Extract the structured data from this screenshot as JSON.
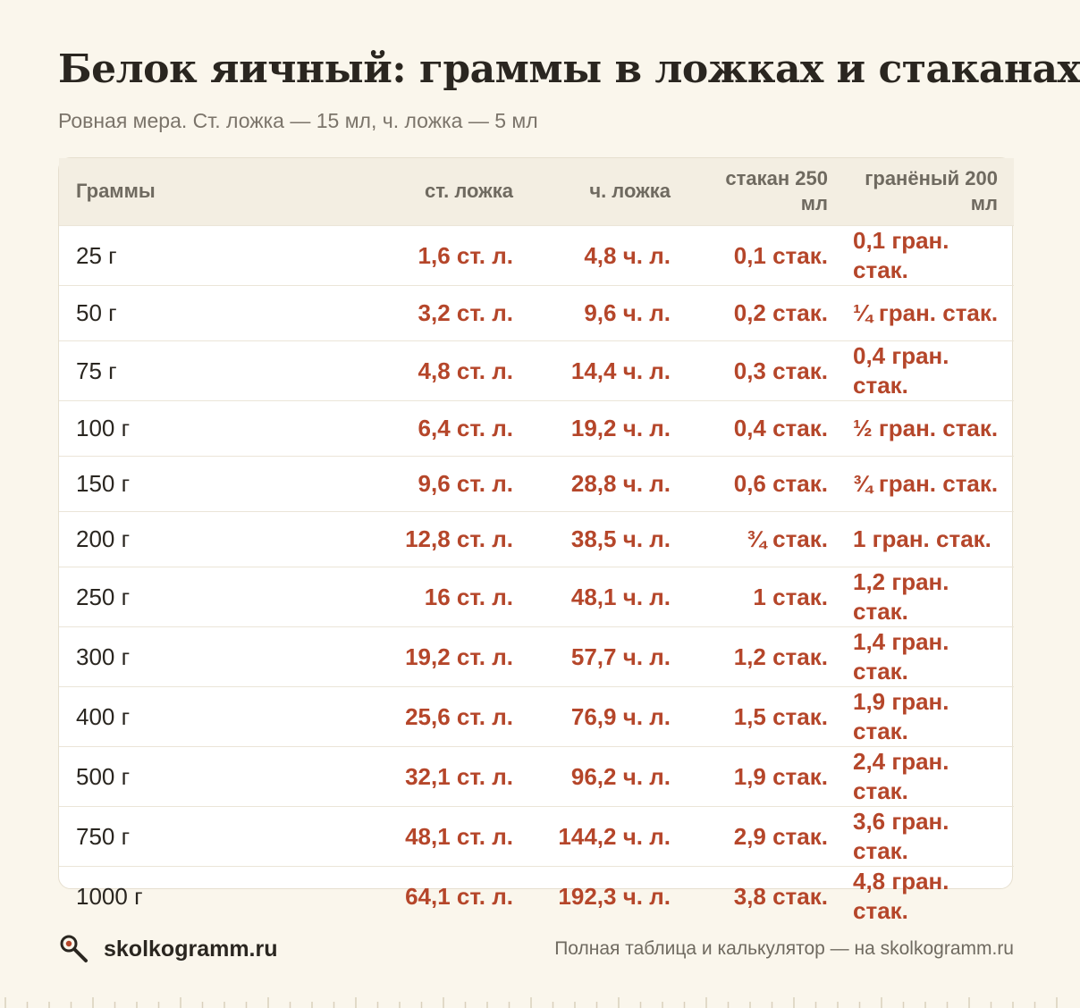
{
  "title": "Белок яичный: граммы в ложках и стаканах",
  "subtitle": "Ровная мера. Ст. ложка — 15 мл, ч. ложка — 5 мл",
  "table": {
    "headers": [
      "Граммы",
      "ст. ложка",
      "ч. ложка",
      "стакан 250 мл",
      "гранёный 200 мл"
    ],
    "rows": [
      [
        "25 г",
        "1,6 ст. л.",
        "4,8 ч. л.",
        "0,1 стак.",
        "0,1 гран. стак."
      ],
      [
        "50 г",
        "3,2 ст. л.",
        "9,6 ч. л.",
        "0,2 стак.",
        "¼ гран. стак."
      ],
      [
        "75 г",
        "4,8 ст. л.",
        "14,4 ч. л.",
        "0,3 стак.",
        "0,4 гран. стак."
      ],
      [
        "100 г",
        "6,4 ст. л.",
        "19,2 ч. л.",
        "0,4 стак.",
        "½ гран. стак."
      ],
      [
        "150 г",
        "9,6 ст. л.",
        "28,8 ч. л.",
        "0,6 стак.",
        "¾ гран. стак."
      ],
      [
        "200 г",
        "12,8 ст. л.",
        "38,5 ч. л.",
        "¾ стак.",
        "1 гран. стак."
      ],
      [
        "250 г",
        "16 ст. л.",
        "48,1 ч. л.",
        "1 стак.",
        "1,2 гран. стак."
      ],
      [
        "300 г",
        "19,2 ст. л.",
        "57,7 ч. л.",
        "1,2 стак.",
        "1,4 гран. стак."
      ],
      [
        "400 г",
        "25,6 ст. л.",
        "76,9 ч. л.",
        "1,5 стак.",
        "1,9 гран. стак."
      ],
      [
        "500 г",
        "32,1 ст. л.",
        "96,2 ч. л.",
        "1,9 стак.",
        "2,4 гран. стак."
      ],
      [
        "750 г",
        "48,1 ст. л.",
        "144,2 ч. л.",
        "2,9 стак.",
        "3,6 гран. стак."
      ],
      [
        "1000 г",
        "64,1 ст. л.",
        "192,3 ч. л.",
        "3,8 стак.",
        "4,8 гран. стак."
      ]
    ]
  },
  "footer": {
    "brand": "skolkogramm.ru",
    "logo_icon": "magnifier-icon",
    "note": "Полная таблица и калькулятор — на skolkogramm.ru"
  },
  "colors": {
    "background": "#faf6ec",
    "accent_value": "#b5462a",
    "text": "#2a2620",
    "muted": "#7b746a"
  }
}
